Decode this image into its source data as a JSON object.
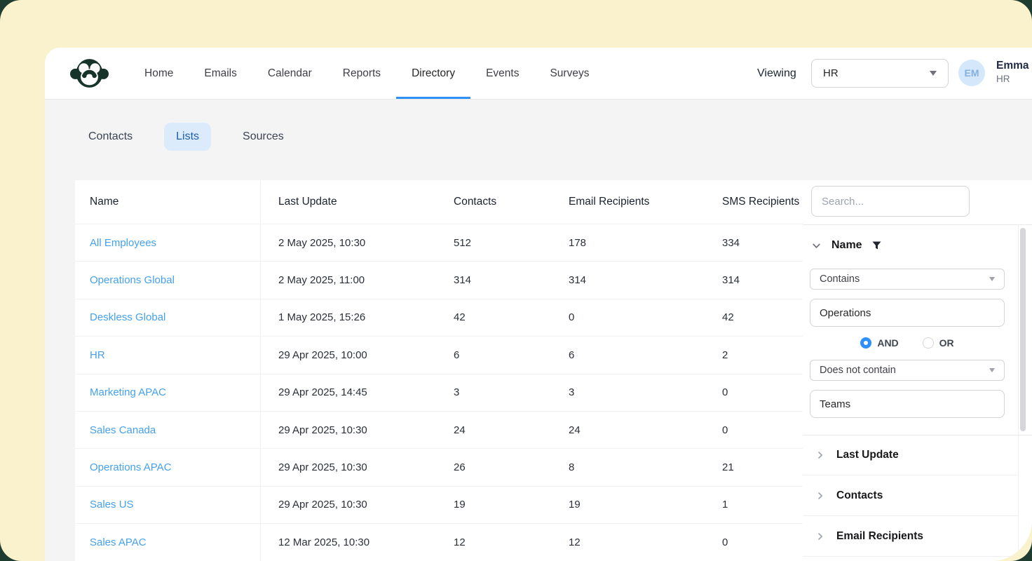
{
  "header": {
    "viewing_label": "Viewing",
    "viewing_value": "HR",
    "user": {
      "initials": "EM",
      "name": "Emma M",
      "role": "HR"
    }
  },
  "nav": {
    "items": [
      "Home",
      "Emails",
      "Calendar",
      "Reports",
      "Directory",
      "Events",
      "Surveys"
    ],
    "active": "Directory"
  },
  "tabs": [
    {
      "label": "Contacts",
      "active": false
    },
    {
      "label": "Lists",
      "active": true
    },
    {
      "label": "Sources",
      "active": false
    }
  ],
  "table": {
    "columns": [
      "Name",
      "Last Update",
      "Contacts",
      "Email Recipients",
      "SMS Recipients"
    ],
    "rows": [
      {
        "name": "All Employees",
        "last_update": "2 May 2025, 10:30",
        "contacts": "512",
        "email_recipients": "178",
        "sms_recipients": "334"
      },
      {
        "name": "Operations Global",
        "last_update": "2 May 2025, 11:00",
        "contacts": "314",
        "email_recipients": "314",
        "sms_recipients": "314"
      },
      {
        "name": "Deskless Global",
        "last_update": "1 May 2025, 15:26",
        "contacts": "42",
        "email_recipients": "0",
        "sms_recipients": "42"
      },
      {
        "name": "HR",
        "last_update": "29 Apr 2025, 10:00",
        "contacts": "6",
        "email_recipients": "6",
        "sms_recipients": "2"
      },
      {
        "name": "Marketing APAC",
        "last_update": "29 Apr 2025, 14:45",
        "contacts": "3",
        "email_recipients": "3",
        "sms_recipients": "0"
      },
      {
        "name": "Sales Canada",
        "last_update": "29 Apr 2025, 10:30",
        "contacts": "24",
        "email_recipients": "24",
        "sms_recipients": "0"
      },
      {
        "name": "Operations APAC",
        "last_update": "29 Apr 2025, 10:30",
        "contacts": "26",
        "email_recipients": "8",
        "sms_recipients": "21"
      },
      {
        "name": "Sales US",
        "last_update": "29 Apr 2025, 10:30",
        "contacts": "19",
        "email_recipients": "19",
        "sms_recipients": "1"
      },
      {
        "name": "Sales APAC",
        "last_update": "12 Mar 2025, 10:30",
        "contacts": "12",
        "email_recipients": "12",
        "sms_recipients": "0"
      }
    ]
  },
  "filters": {
    "search_placeholder": "Search...",
    "name_section": {
      "label": "Name",
      "operator1": "Contains",
      "value1": "Operations",
      "join_selected": "AND",
      "join_options": [
        "AND",
        "OR"
      ],
      "operator2": "Does not contain",
      "value2": "Teams"
    },
    "collapsed_sections": [
      "Last Update",
      "Contacts",
      "Email Recipients"
    ]
  },
  "icons": {
    "logo": "brand-monkey-logo",
    "filter": "filter-funnel-icon",
    "expand": "chevron-down-icon",
    "collapse": "chevron-right-icon"
  },
  "colors": {
    "accent_blue": "#2E90FA",
    "link_blue": "#45A1EE",
    "tab_pill_bg": "#DCEBFB",
    "tab_pill_text": "#1C5FAE",
    "brand_green": "#16342A",
    "frame_cream": "#FAF2CD",
    "content_bg": "#F4F4F5"
  }
}
